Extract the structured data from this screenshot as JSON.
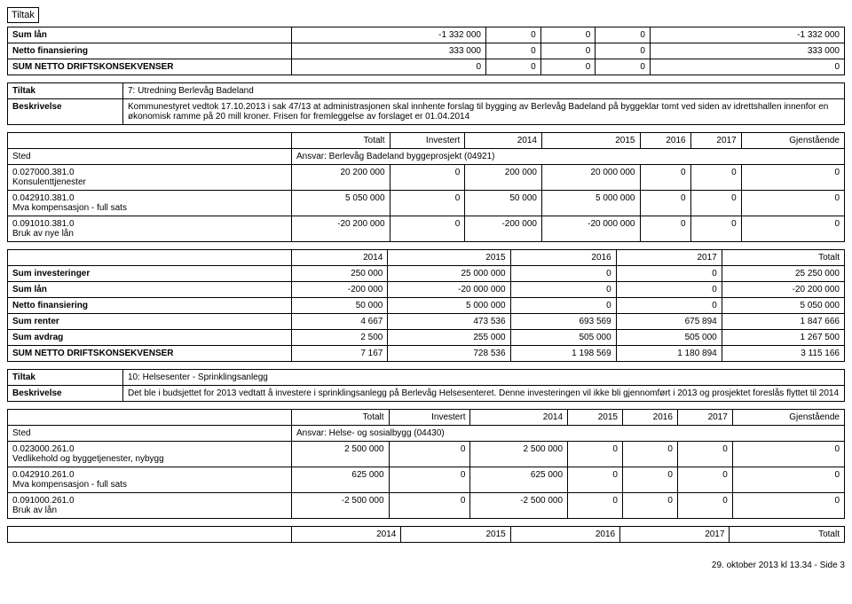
{
  "page_header": "Tiltak",
  "summary1": {
    "rows": [
      {
        "label": "Sum lån",
        "c1": "-1 332 000",
        "c2": "0",
        "c3": "0",
        "c4": "0",
        "c5": "-1 332 000"
      },
      {
        "label": "Netto finansiering",
        "c1": "333 000",
        "c2": "0",
        "c3": "0",
        "c4": "0",
        "c5": "333 000"
      },
      {
        "label": "SUM NETTO DRIFTSKONSEKVENSER",
        "c1": "0",
        "c2": "0",
        "c3": "0",
        "c4": "0",
        "c5": "0"
      }
    ]
  },
  "block1": {
    "tiltak_label": "Tiltak",
    "tiltak_val": "7: Utredning Berlevåg Badeland",
    "beskriv_label": "Beskrivelse",
    "beskriv_val": "Kommunestyret vedtok 17.10.2013 i sak 47/13 at administrasjonen skal innhente forslag til bygging av Berlevåg Badeland på byggeklar tomt ved siden av idrettshallen innenfor en økonomisk ramme på 20 mill kroner. Frisen for fremleggelse av forslaget er 01.04.2014",
    "cols": {
      "c0": "",
      "c1": "Totalt",
      "c2": "Investert",
      "c3": "2014",
      "c4": "2015",
      "c5": "2016",
      "c6": "2017",
      "c7": "Gjenstående"
    },
    "sted_label": "Sted",
    "sted_val": "Ansvar: Berlevåg Badeland byggeprosjekt (04921)",
    "rows": [
      {
        "label": "0.027000.381.0\nKonsulenttjenester",
        "c1": "20 200 000",
        "c2": "0",
        "c3": "200 000",
        "c4": "20 000 000",
        "c5": "0",
        "c6": "0",
        "c7": "0"
      },
      {
        "label": "0.042910.381.0\nMva kompensasjon - full sats",
        "c1": "5 050 000",
        "c2": "0",
        "c3": "50 000",
        "c4": "5 000 000",
        "c5": "0",
        "c6": "0",
        "c7": "0"
      },
      {
        "label": "0.091010.381.0\nBruk av nye lån",
        "c1": "-20 200 000",
        "c2": "0",
        "c3": "-200 000",
        "c4": "-20 000 000",
        "c5": "0",
        "c6": "0",
        "c7": "0"
      }
    ],
    "sum_head": {
      "c1": "2014",
      "c2": "2015",
      "c3": "2016",
      "c4": "2017",
      "c5": "Totalt"
    },
    "sums": [
      {
        "label": "Sum investeringer",
        "c1": "250 000",
        "c2": "25 000 000",
        "c3": "0",
        "c4": "0",
        "c5": "25 250 000"
      },
      {
        "label": "Sum lån",
        "c1": "-200 000",
        "c2": "-20 000 000",
        "c3": "0",
        "c4": "0",
        "c5": "-20 200 000"
      },
      {
        "label": "Netto finansiering",
        "c1": "50 000",
        "c2": "5 000 000",
        "c3": "0",
        "c4": "0",
        "c5": "5 050 000"
      },
      {
        "label": "Sum renter",
        "c1": "4 667",
        "c2": "473 536",
        "c3": "693 569",
        "c4": "675 894",
        "c5": "1 847 666"
      },
      {
        "label": "Sum avdrag",
        "c1": "2 500",
        "c2": "255 000",
        "c3": "505 000",
        "c4": "505 000",
        "c5": "1 267 500"
      },
      {
        "label": "SUM NETTO DRIFTSKONSEKVENSER",
        "c1": "7 167",
        "c2": "728 536",
        "c3": "1 198 569",
        "c4": "1 180 894",
        "c5": "3 115 166"
      }
    ]
  },
  "block2": {
    "tiltak_label": "Tiltak",
    "tiltak_val": "10: Helsesenter - Sprinklingsanlegg",
    "beskriv_label": "Beskrivelse",
    "beskriv_val": "Det ble i budsjettet for 2013 vedtatt å investere i sprinklingsanlegg på Berlevåg Helsesenteret. Denne investeringen vil ikke bli gjennomført i 2013 og prosjektet foreslås flyttet til 2014",
    "cols": {
      "c0": "",
      "c1": "Totalt",
      "c2": "Investert",
      "c3": "2014",
      "c4": "2015",
      "c5": "2016",
      "c6": "2017",
      "c7": "Gjenstående"
    },
    "sted_label": "Sted",
    "sted_val": "Ansvar: Helse- og sosialbygg (04430)",
    "rows": [
      {
        "label": "0.023000.261.0\nVedlikehold og byggetjenester, nybygg",
        "c1": "2 500 000",
        "c2": "0",
        "c3": "2 500 000",
        "c4": "0",
        "c5": "0",
        "c6": "0",
        "c7": "0"
      },
      {
        "label": "0.042910.261.0\nMva kompensasjon - full sats",
        "c1": "625 000",
        "c2": "0",
        "c3": "625 000",
        "c4": "0",
        "c5": "0",
        "c6": "0",
        "c7": "0"
      },
      {
        "label": "0.091000.261.0\nBruk av lån",
        "c1": "-2 500 000",
        "c2": "0",
        "c3": "-2 500 000",
        "c4": "0",
        "c5": "0",
        "c6": "0",
        "c7": "0"
      }
    ],
    "sum_head": {
      "c1": "2014",
      "c2": "2015",
      "c3": "2016",
      "c4": "2017",
      "c5": "Totalt"
    }
  },
  "footer": "29. oktober 2013 kl 13.34 - Side 3"
}
